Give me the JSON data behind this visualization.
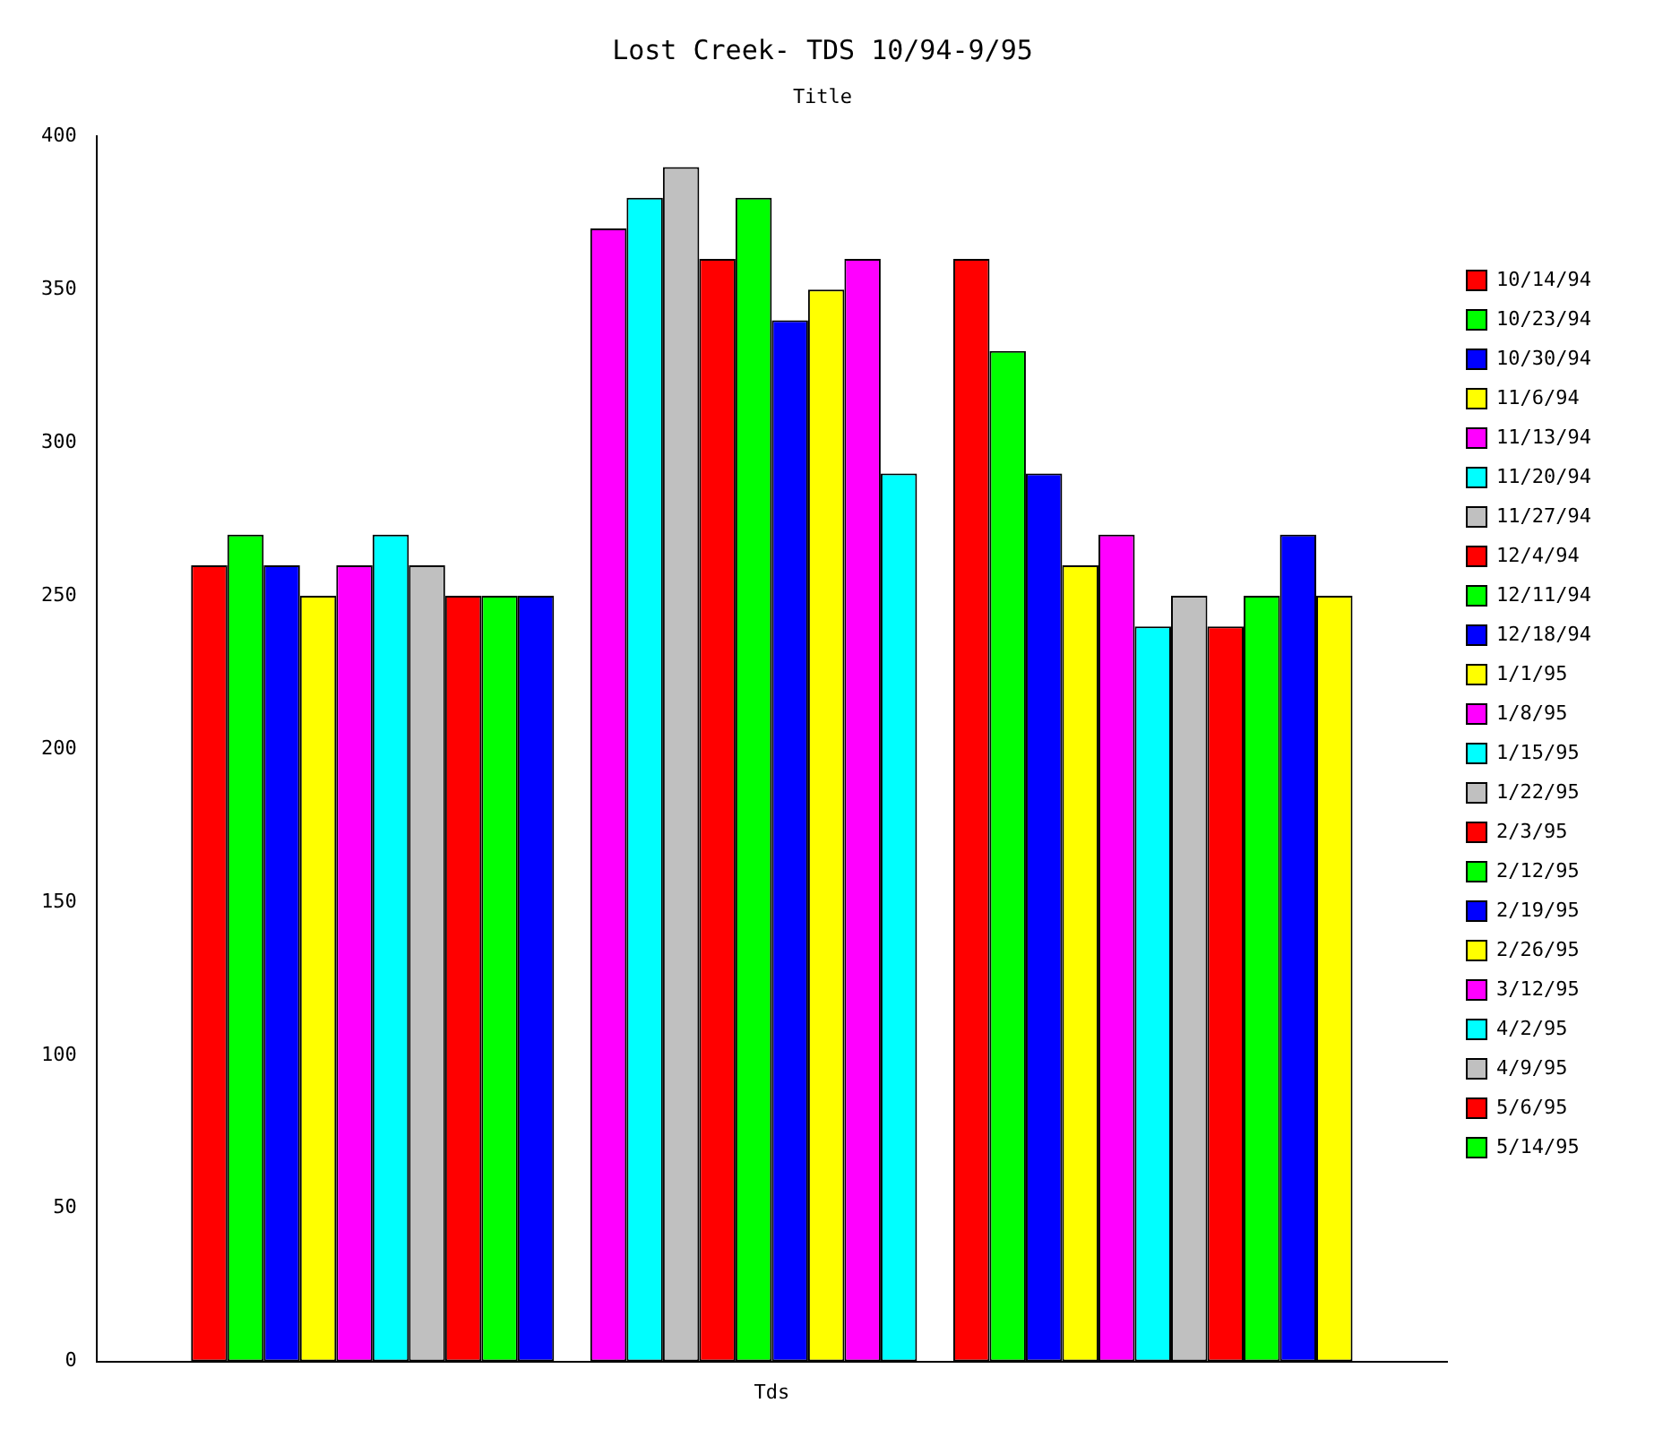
{
  "chart_data": {
    "type": "bar",
    "title": "Lost Creek- TDS 10/94-9/95",
    "subtitle": "Title",
    "categories": [
      "Tds"
    ],
    "ylim": [
      0,
      400
    ],
    "yticks": [
      0,
      50,
      100,
      150,
      200,
      250,
      300,
      350,
      400
    ],
    "grid": false,
    "legend": "right",
    "series": [
      {
        "name": "10/14/94",
        "color": "#ff0000",
        "values": [
          260
        ]
      },
      {
        "name": "10/23/94",
        "color": "#00ff00",
        "values": [
          270
        ]
      },
      {
        "name": "10/30/94",
        "color": "#0000ff",
        "values": [
          260
        ]
      },
      {
        "name": "11/6/94",
        "color": "#ffff00",
        "values": [
          250
        ]
      },
      {
        "name": "11/13/94",
        "color": "#ff00ff",
        "values": [
          260
        ]
      },
      {
        "name": "11/20/94",
        "color": "#00ffff",
        "values": [
          270
        ]
      },
      {
        "name": "11/27/94",
        "color": "#c0c0c0",
        "values": [
          260
        ]
      },
      {
        "name": "12/4/94",
        "color": "#ff0000",
        "values": [
          250
        ]
      },
      {
        "name": "12/11/94",
        "color": "#00ff00",
        "values": [
          250
        ]
      },
      {
        "name": "12/18/94",
        "color": "#0000ff",
        "values": [
          250
        ]
      },
      {
        "name": "1/1/95",
        "color": "#ffff00",
        "values": [
          null
        ]
      },
      {
        "name": "1/8/95",
        "color": "#ff00ff",
        "values": [
          370
        ]
      },
      {
        "name": "1/15/95",
        "color": "#00ffff",
        "values": [
          380
        ]
      },
      {
        "name": "1/22/95",
        "color": "#c0c0c0",
        "values": [
          390
        ]
      },
      {
        "name": "2/3/95",
        "color": "#ff0000",
        "values": [
          360
        ]
      },
      {
        "name": "2/12/95",
        "color": "#00ff00",
        "values": [
          380
        ]
      },
      {
        "name": "2/19/95",
        "color": "#0000ff",
        "values": [
          340
        ]
      },
      {
        "name": "2/26/95",
        "color": "#ffff00",
        "values": [
          350
        ]
      },
      {
        "name": "3/12/95",
        "color": "#ff00ff",
        "values": [
          360
        ]
      },
      {
        "name": "4/2/95",
        "color": "#00ffff",
        "values": [
          290
        ]
      },
      {
        "name": "4/9/95",
        "color": "#c0c0c0",
        "values": [
          null
        ]
      },
      {
        "name": "5/6/95",
        "color": "#ff0000",
        "values": [
          360
        ]
      },
      {
        "name": "5/14/95",
        "color": "#00ff00",
        "values": [
          330
        ]
      },
      {
        "color": "#0000ff",
        "values": [
          290
        ]
      },
      {
        "color": "#ffff00",
        "values": [
          260
        ]
      },
      {
        "color": "#ff00ff",
        "values": [
          270
        ]
      },
      {
        "color": "#00ffff",
        "values": [
          240
        ]
      },
      {
        "color": "#c0c0c0",
        "values": [
          250
        ]
      },
      {
        "color": "#ff0000",
        "values": [
          240
        ]
      },
      {
        "color": "#00ff00",
        "values": [
          250
        ]
      },
      {
        "color": "#0000ff",
        "values": [
          270
        ]
      },
      {
        "color": "#ffff00",
        "values": [
          250
        ]
      }
    ]
  }
}
